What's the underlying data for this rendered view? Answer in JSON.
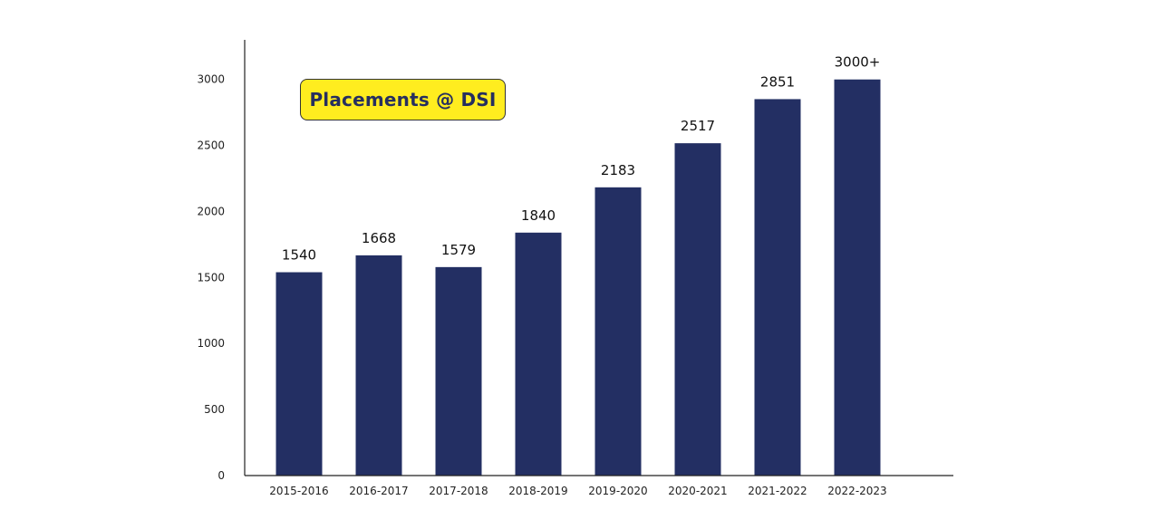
{
  "chart_data": {
    "type": "bar",
    "title": "Placements @ DSI",
    "categories": [
      "2015-2016",
      "2016-2017",
      "2017-2018",
      "2018-2019",
      "2019-2020",
      "2020-2021",
      "2021-2022",
      "2022-2023"
    ],
    "values": [
      1540,
      1668,
      1579,
      1840,
      2183,
      2517,
      2851,
      3000
    ],
    "data_labels": [
      "1540",
      "1668",
      "1579",
      "1840",
      "2183",
      "2517",
      "2851",
      "3000+"
    ],
    "ylim": [
      0,
      3300
    ],
    "yticks": [
      0,
      500,
      1000,
      1500,
      2000,
      2500,
      3000
    ],
    "bar_color": "#232f63",
    "title_bg_color": "#ffed1f",
    "title_text_color": "#262f5f",
    "xlabel": "",
    "ylabel": "",
    "grid": false,
    "legend": false
  }
}
